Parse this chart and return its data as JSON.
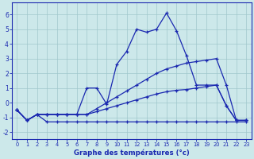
{
  "xlabel": "Graphe des températures (°c)",
  "bg_color": "#cce8ea",
  "grid_color": "#a0c8cc",
  "line_color": "#1a28b0",
  "xlim": [
    -0.5,
    23.5
  ],
  "ylim": [
    -2.5,
    6.8
  ],
  "x_ticks": [
    0,
    1,
    2,
    3,
    4,
    5,
    6,
    7,
    8,
    9,
    10,
    11,
    12,
    13,
    14,
    15,
    16,
    17,
    18,
    19,
    20,
    21,
    22,
    23
  ],
  "yticks": [
    -2,
    -1,
    0,
    1,
    2,
    3,
    4,
    5,
    6
  ],
  "line1_y": [
    -0.5,
    -1.2,
    -0.8,
    -1.3,
    -1.3,
    -1.3,
    -1.3,
    -1.3,
    -1.3,
    -1.3,
    -1.3,
    -1.3,
    -1.3,
    -1.3,
    -1.3,
    -1.3,
    -1.3,
    -1.3,
    -1.3,
    -1.3,
    -1.3,
    -1.3,
    -1.3,
    -1.3
  ],
  "line2_y": [
    -0.5,
    -1.2,
    -0.8,
    -0.8,
    -0.8,
    -0.8,
    -0.8,
    -0.8,
    -0.6,
    -0.4,
    -0.2,
    0.0,
    0.2,
    0.4,
    0.6,
    0.75,
    0.85,
    0.9,
    1.0,
    1.1,
    1.2,
    -0.2,
    -1.2,
    -1.2
  ],
  "line3_y": [
    -0.5,
    -1.2,
    -0.8,
    -0.8,
    -0.8,
    -0.8,
    -0.8,
    -0.8,
    -0.4,
    0.0,
    0.4,
    0.8,
    1.2,
    1.6,
    2.0,
    2.3,
    2.5,
    2.7,
    2.8,
    2.9,
    3.0,
    1.2,
    -1.2,
    -1.2
  ],
  "line4_y": [
    -0.5,
    -1.2,
    -0.8,
    -0.8,
    -0.8,
    -0.8,
    -0.8,
    1.0,
    1.0,
    -0.1,
    2.6,
    3.5,
    5.0,
    4.8,
    5.0,
    6.1,
    4.9,
    3.2,
    1.2,
    1.2,
    1.2,
    -0.2,
    -1.2,
    -1.2
  ]
}
